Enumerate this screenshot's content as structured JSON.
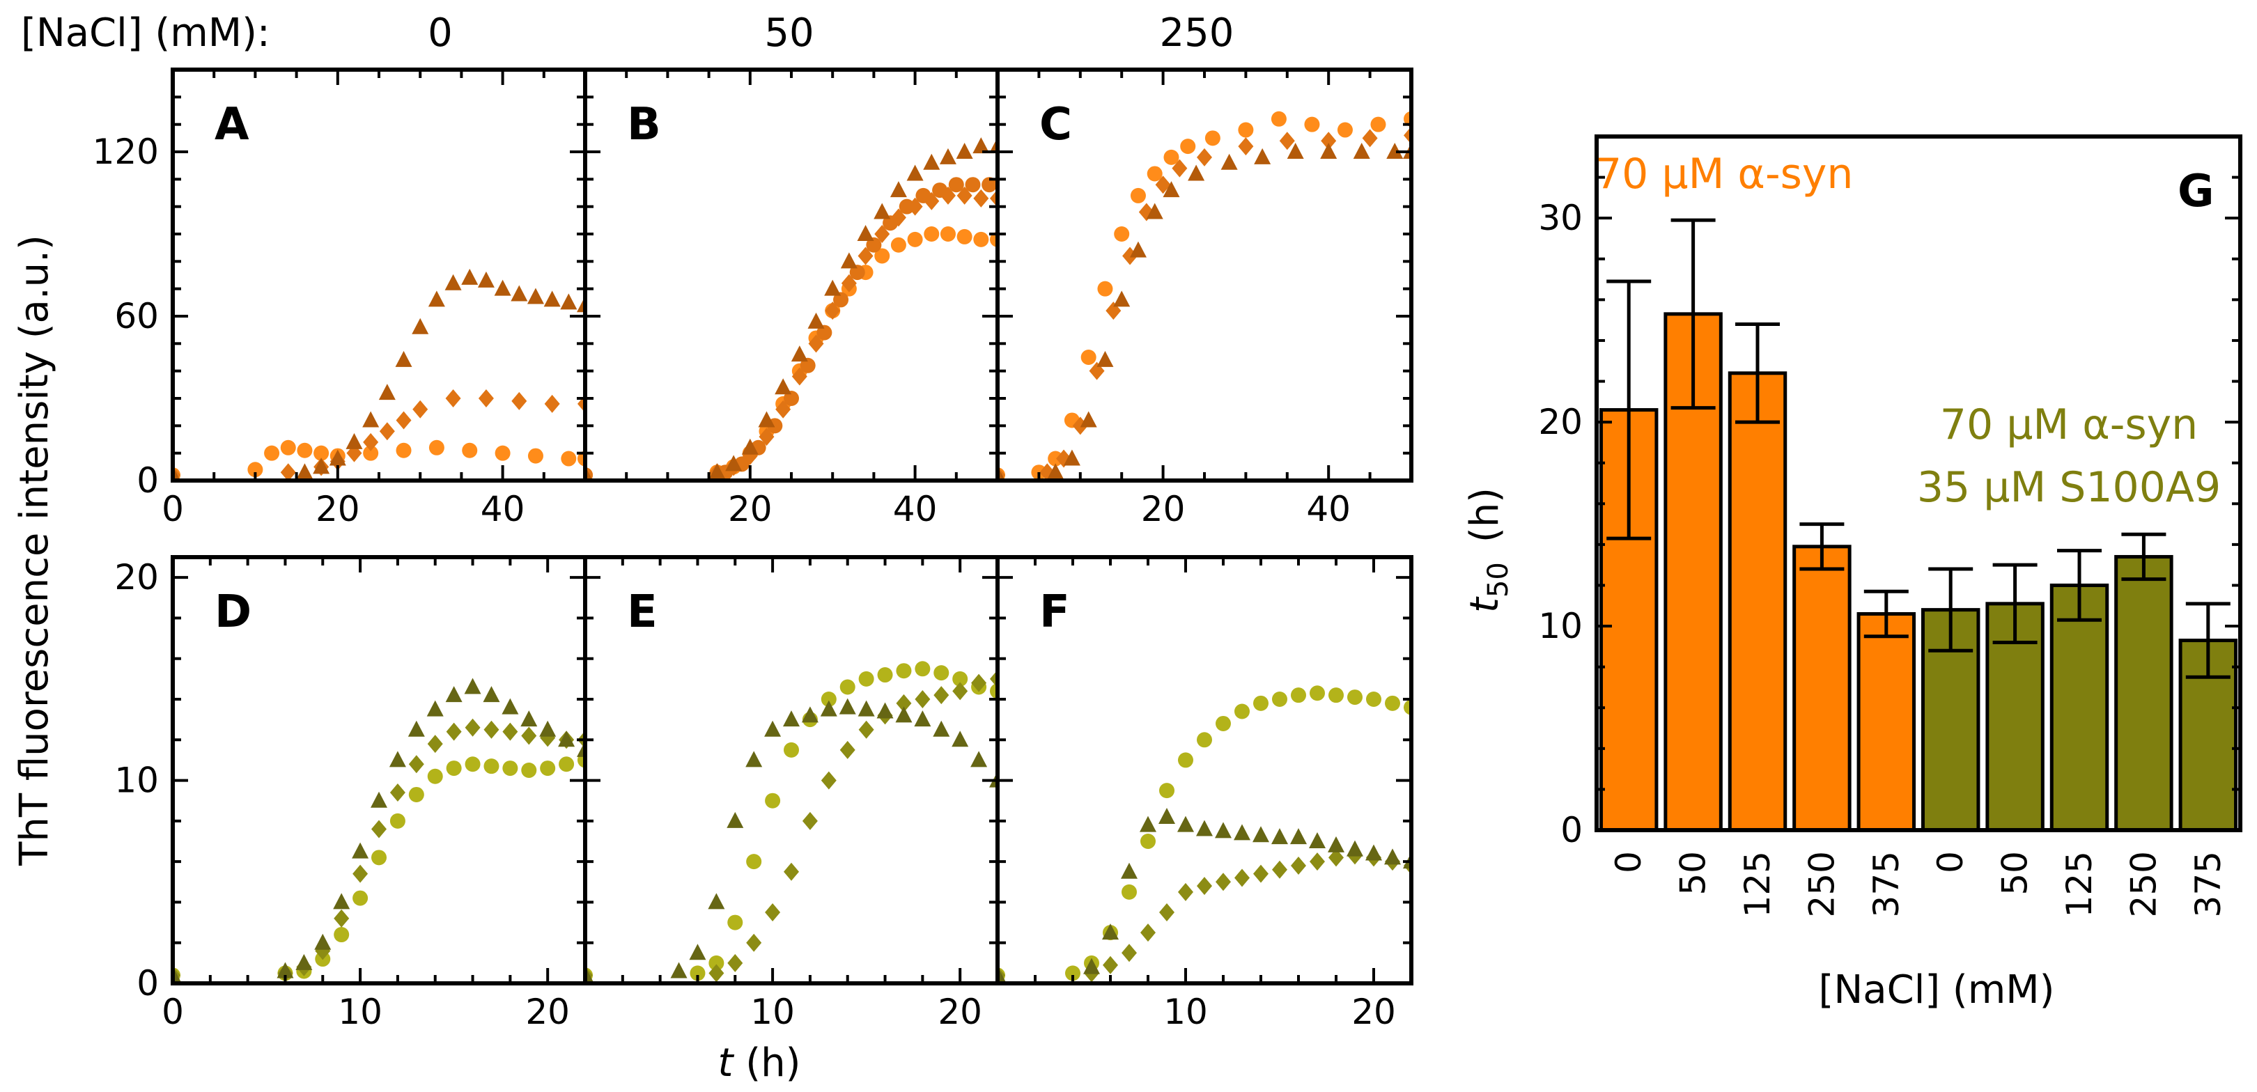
{
  "figure": {
    "header_label": "[NaCl] (mM):",
    "header_concentrations": [
      "0",
      "50",
      "250"
    ],
    "y_label_left": "ThT fluorescence intensity (a.u.)",
    "x_label_italic": "t",
    "x_label_unit": " (h)"
  },
  "colors": {
    "light_orange": "#ff8c1a",
    "orange": "#e07414",
    "brown": "#b35a0a",
    "light_olive": "#b3b31a",
    "olive": "#8c8c14",
    "dark_olive": "#666614",
    "bar_orange": "#ff7f00",
    "bar_olive": "#7f7f0f"
  },
  "chart_data": [
    {
      "type": "scatter",
      "panel": "A",
      "nacl_mM": "0",
      "xlim": [
        0,
        50
      ],
      "ylim": [
        0,
        150
      ],
      "xticks": [
        "0",
        "20",
        "40"
      ],
      "yticks": [
        "0",
        "60",
        "120"
      ],
      "series": [
        {
          "marker": "circle",
          "color": "light_orange",
          "x": [
            0,
            10,
            12,
            14,
            16,
            18,
            20,
            24,
            28,
            32,
            36,
            40,
            44,
            48,
            50
          ],
          "y": [
            2,
            4,
            10,
            12,
            11,
            10,
            9,
            10,
            11,
            12,
            11,
            10,
            9,
            8,
            8
          ]
        },
        {
          "marker": "diamond",
          "color": "orange",
          "x": [
            0,
            14,
            18,
            20,
            22,
            24,
            26,
            28,
            30,
            34,
            38,
            42,
            46,
            50
          ],
          "y": [
            2,
            3,
            5,
            7,
            10,
            14,
            18,
            22,
            26,
            30,
            30,
            29,
            28,
            28
          ]
        },
        {
          "marker": "triangle",
          "color": "brown",
          "x": [
            0,
            16,
            18,
            20,
            22,
            24,
            26,
            28,
            30,
            32,
            34,
            36,
            38,
            40,
            42,
            44,
            46,
            48,
            50
          ],
          "y": [
            2,
            3,
            5,
            8,
            14,
            22,
            32,
            44,
            56,
            66,
            72,
            74,
            73,
            70,
            68,
            67,
            66,
            65,
            64
          ]
        }
      ]
    },
    {
      "type": "scatter",
      "panel": "B",
      "nacl_mM": "50",
      "xlim": [
        0,
        50
      ],
      "ylim": [
        0,
        150
      ],
      "xticks": [
        "20",
        "40"
      ],
      "yticks": [],
      "series": [
        {
          "marker": "circle",
          "color": "light_orange",
          "x": [
            0,
            16,
            18,
            20,
            22,
            24,
            26,
            28,
            30,
            32,
            34,
            36,
            38,
            40,
            42,
            44,
            46,
            48,
            50
          ],
          "y": [
            2,
            3,
            5,
            10,
            18,
            28,
            40,
            52,
            62,
            70,
            76,
            82,
            86,
            88,
            90,
            90,
            89,
            88,
            88
          ]
        },
        {
          "marker": "diamond",
          "color": "orange",
          "x": [
            0,
            16,
            18,
            20,
            22,
            24,
            26,
            28,
            30,
            32,
            34,
            36,
            38,
            40,
            42,
            44,
            46,
            48,
            50
          ],
          "y": [
            2,
            3,
            5,
            9,
            16,
            26,
            38,
            50,
            62,
            72,
            82,
            90,
            96,
            100,
            102,
            104,
            104,
            103,
            103
          ]
        },
        {
          "marker": "circle",
          "color": "orange",
          "x": [
            0,
            17,
            19,
            21,
            23,
            25,
            27,
            29,
            31,
            33,
            35,
            37,
            39,
            41,
            43,
            45,
            47,
            49
          ],
          "y": [
            2,
            3,
            6,
            12,
            20,
            30,
            42,
            54,
            66,
            76,
            86,
            94,
            100,
            104,
            106,
            108,
            108,
            108
          ]
        },
        {
          "marker": "triangle",
          "color": "brown",
          "x": [
            0,
            16,
            18,
            20,
            22,
            24,
            26,
            28,
            30,
            32,
            34,
            36,
            38,
            40,
            42,
            44,
            46,
            48,
            50
          ],
          "y": [
            2,
            3,
            6,
            12,
            22,
            34,
            46,
            58,
            70,
            80,
            90,
            98,
            106,
            112,
            116,
            118,
            120,
            122,
            122
          ]
        }
      ]
    },
    {
      "type": "scatter",
      "panel": "C",
      "nacl_mM": "250",
      "xlim": [
        0,
        50
      ],
      "ylim": [
        0,
        150
      ],
      "xticks": [
        "20",
        "40"
      ],
      "yticks": [],
      "series": [
        {
          "marker": "circle",
          "color": "light_orange",
          "x": [
            0,
            5,
            7,
            9,
            11,
            13,
            15,
            17,
            19,
            21,
            23,
            26,
            30,
            34,
            38,
            42,
            46,
            50
          ],
          "y": [
            2,
            3,
            8,
            22,
            45,
            70,
            90,
            104,
            112,
            118,
            122,
            125,
            128,
            132,
            130,
            128,
            130,
            132
          ]
        },
        {
          "marker": "diamond",
          "color": "orange",
          "x": [
            0,
            6,
            8,
            10,
            12,
            14,
            16,
            18,
            20,
            22,
            25,
            30,
            35,
            40,
            45,
            50
          ],
          "y": [
            2,
            3,
            8,
            20,
            40,
            62,
            82,
            98,
            108,
            114,
            118,
            122,
            124,
            124,
            125,
            126
          ]
        },
        {
          "marker": "triangle",
          "color": "brown",
          "x": [
            0,
            7,
            9,
            11,
            13,
            15,
            17,
            19,
            21,
            24,
            28,
            32,
            36,
            40,
            44,
            48,
            50
          ],
          "y": [
            2,
            3,
            8,
            22,
            44,
            66,
            84,
            98,
            106,
            112,
            116,
            118,
            120,
            120,
            120,
            120,
            120
          ]
        }
      ]
    },
    {
      "type": "scatter",
      "panel": "D",
      "xlim": [
        0,
        22
      ],
      "ylim": [
        0,
        21
      ],
      "xticks": [
        "0",
        "10",
        "20"
      ],
      "yticks": [
        "0",
        "10",
        "20"
      ],
      "series": [
        {
          "marker": "circle",
          "color": "light_olive",
          "x": [
            0,
            6,
            7,
            8,
            9,
            10,
            11,
            12,
            13,
            14,
            15,
            16,
            17,
            18,
            19,
            20,
            21,
            22
          ],
          "y": [
            0.4,
            0.5,
            0.6,
            1.2,
            2.4,
            4.2,
            6.2,
            8,
            9.3,
            10.2,
            10.6,
            10.8,
            10.7,
            10.6,
            10.5,
            10.6,
            10.8,
            11
          ]
        },
        {
          "marker": "diamond",
          "color": "olive",
          "x": [
            0,
            6,
            7,
            8,
            9,
            10,
            11,
            12,
            13,
            14,
            15,
            16,
            17,
            18,
            19,
            20,
            21,
            22
          ],
          "y": [
            0.4,
            0.5,
            0.8,
            1.6,
            3.2,
            5.4,
            7.6,
            9.4,
            10.8,
            11.8,
            12.4,
            12.6,
            12.5,
            12.4,
            12.2,
            12.1,
            12,
            12
          ]
        },
        {
          "marker": "triangle",
          "color": "dark_olive",
          "x": [
            0,
            6,
            7,
            8,
            9,
            10,
            11,
            12,
            13,
            14,
            15,
            16,
            17,
            18,
            19,
            20,
            21,
            22
          ],
          "y": [
            0.4,
            0.6,
            1,
            2,
            4,
            6.5,
            9,
            11,
            12.5,
            13.5,
            14.2,
            14.6,
            14.2,
            13.6,
            13,
            12.5,
            12,
            11.5
          ]
        }
      ]
    },
    {
      "type": "scatter",
      "panel": "E",
      "xlim": [
        0,
        22
      ],
      "ylim": [
        0,
        21
      ],
      "xticks": [
        "10",
        "20"
      ],
      "yticks": [],
      "series": [
        {
          "marker": "circle",
          "color": "light_olive",
          "x": [
            0,
            6,
            7,
            8,
            9,
            10,
            11,
            12,
            13,
            14,
            15,
            16,
            17,
            18,
            19,
            20,
            21,
            22
          ],
          "y": [
            0.4,
            0.5,
            1,
            3,
            6,
            9,
            11.5,
            13,
            14,
            14.6,
            15,
            15.2,
            15.4,
            15.5,
            15.3,
            15,
            14.6,
            14.4
          ]
        },
        {
          "marker": "diamond",
          "color": "olive",
          "x": [
            0,
            7,
            8,
            9,
            10,
            11,
            12,
            13,
            14,
            15,
            16,
            17,
            18,
            19,
            20,
            21,
            22
          ],
          "y": [
            0.4,
            0.5,
            1,
            2,
            3.5,
            5.5,
            8,
            10,
            11.5,
            12.5,
            13.2,
            13.8,
            14,
            14.2,
            14.4,
            14.8,
            15
          ]
        },
        {
          "marker": "triangle",
          "color": "dark_olive",
          "x": [
            0,
            5,
            6,
            7,
            8,
            9,
            10,
            11,
            12,
            13,
            14,
            15,
            16,
            17,
            18,
            19,
            20,
            21,
            22
          ],
          "y": [
            0.4,
            0.6,
            1.5,
            4,
            8,
            11,
            12.5,
            13,
            13.2,
            13.5,
            13.6,
            13.5,
            13.4,
            13.2,
            13,
            12.5,
            12,
            11,
            10
          ]
        }
      ]
    },
    {
      "type": "scatter",
      "panel": "F",
      "xlim": [
        0,
        22
      ],
      "ylim": [
        0,
        21
      ],
      "xticks": [
        "10",
        "20"
      ],
      "yticks": [],
      "series": [
        {
          "marker": "circle",
          "color": "light_olive",
          "x": [
            0,
            4,
            5,
            6,
            7,
            8,
            9,
            10,
            11,
            12,
            13,
            14,
            15,
            16,
            17,
            18,
            19,
            20,
            21,
            22
          ],
          "y": [
            0.4,
            0.5,
            1,
            2.5,
            4.5,
            7,
            9.5,
            11,
            12,
            12.8,
            13.4,
            13.8,
            14,
            14.2,
            14.3,
            14.2,
            14.1,
            14,
            13.8,
            13.6
          ]
        },
        {
          "marker": "diamond",
          "color": "olive",
          "x": [
            0,
            5,
            6,
            7,
            8,
            9,
            10,
            11,
            12,
            13,
            14,
            15,
            16,
            17,
            18,
            19,
            20,
            21,
            22
          ],
          "y": [
            0.4,
            0.5,
            0.9,
            1.5,
            2.5,
            3.5,
            4.5,
            4.8,
            5,
            5.2,
            5.4,
            5.6,
            5.8,
            6,
            6.2,
            6.3,
            6.2,
            6,
            5.8
          ]
        },
        {
          "marker": "triangle",
          "color": "dark_olive",
          "x": [
            0,
            5,
            6,
            7,
            8,
            9,
            10,
            11,
            12,
            13,
            14,
            15,
            16,
            17,
            18,
            19,
            20,
            21,
            22
          ],
          "y": [
            0.4,
            0.8,
            2.5,
            5.5,
            7.8,
            8.2,
            7.8,
            7.6,
            7.5,
            7.4,
            7.3,
            7.2,
            7.2,
            7,
            6.8,
            6.6,
            6.4,
            6.2,
            6
          ]
        }
      ]
    },
    {
      "type": "bar",
      "panel": "G",
      "categories": [
        "0",
        "50",
        "125",
        "250",
        "375",
        "0",
        "50",
        "125",
        "250",
        "375"
      ],
      "values": [
        20.6,
        25.3,
        22.4,
        13.9,
        10.6,
        10.8,
        11.1,
        12.0,
        13.4,
        9.3
      ],
      "errors": [
        6.3,
        4.6,
        2.4,
        1.1,
        1.1,
        2.0,
        1.9,
        1.7,
        1.1,
        1.8
      ],
      "bar_colors": [
        "bar_orange",
        "bar_orange",
        "bar_orange",
        "bar_orange",
        "bar_orange",
        "bar_olive",
        "bar_olive",
        "bar_olive",
        "bar_olive",
        "bar_olive"
      ],
      "ylim": [
        0,
        34
      ],
      "yticks": [
        "0",
        "10",
        "20",
        "30"
      ],
      "ylabel_main": "t",
      "ylabel_sub": "50",
      "ylabel_unit": "(h)",
      "xlabel": "[NaCl] (mM)",
      "annotation_orange": "70 μM α-syn",
      "annotation_olive_1": "70 μM α-syn",
      "annotation_olive_2": "35 μM S100A9"
    }
  ]
}
